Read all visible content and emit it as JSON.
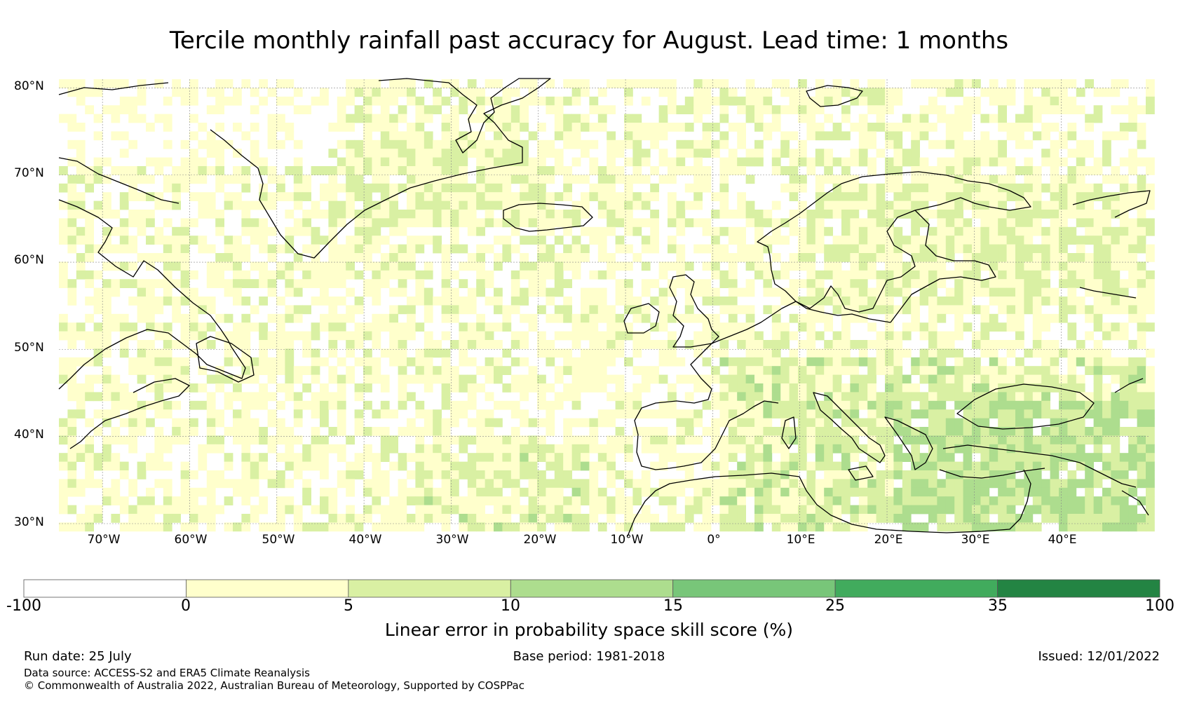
{
  "title": "Tercile monthly rainfall past accuracy for August. Lead time: 1 months",
  "map": {
    "lat_labels": [
      "80°N",
      "70°N",
      "60°N",
      "50°N",
      "40°N",
      "30°N"
    ],
    "lat_values": [
      80,
      70,
      60,
      50,
      40,
      30
    ],
    "lon_labels": [
      "70°W",
      "60°W",
      "50°W",
      "40°W",
      "30°W",
      "20°W",
      "10°W",
      "0°",
      "10°E",
      "20°E",
      "30°E",
      "40°E"
    ],
    "lon_values": [
      -70,
      -60,
      -50,
      -40,
      -30,
      -20,
      -10,
      0,
      10,
      20,
      30,
      40
    ],
    "lon_range": [
      -75,
      50
    ],
    "lat_range": [
      30,
      81
    ],
    "land_color": "#ffffff",
    "coastline_color": "#000000",
    "grid_color": "#888888"
  },
  "colorbar": {
    "label": "Linear error in probability space skill score (%)",
    "ticks": [
      "-100",
      "0",
      "5",
      "10",
      "15",
      "25",
      "35",
      "100"
    ],
    "colors": [
      "#ffffff",
      "#ffffcc",
      "#d9f0a3",
      "#addd8e",
      "#78c679",
      "#41ab5d",
      "#238443"
    ]
  },
  "footer": {
    "run_date": "Run date: 25 July",
    "base_period": "Base period: 1981-2018",
    "issued": "Issued: 12/01/2022",
    "data_source": "Data source: ACCESS-S2 and ERA5 Climate Reanalysis",
    "copyright": "© Commonwealth of Australia 2022, Australian Bureau of Meteorology, Supported by COSPPac"
  }
}
